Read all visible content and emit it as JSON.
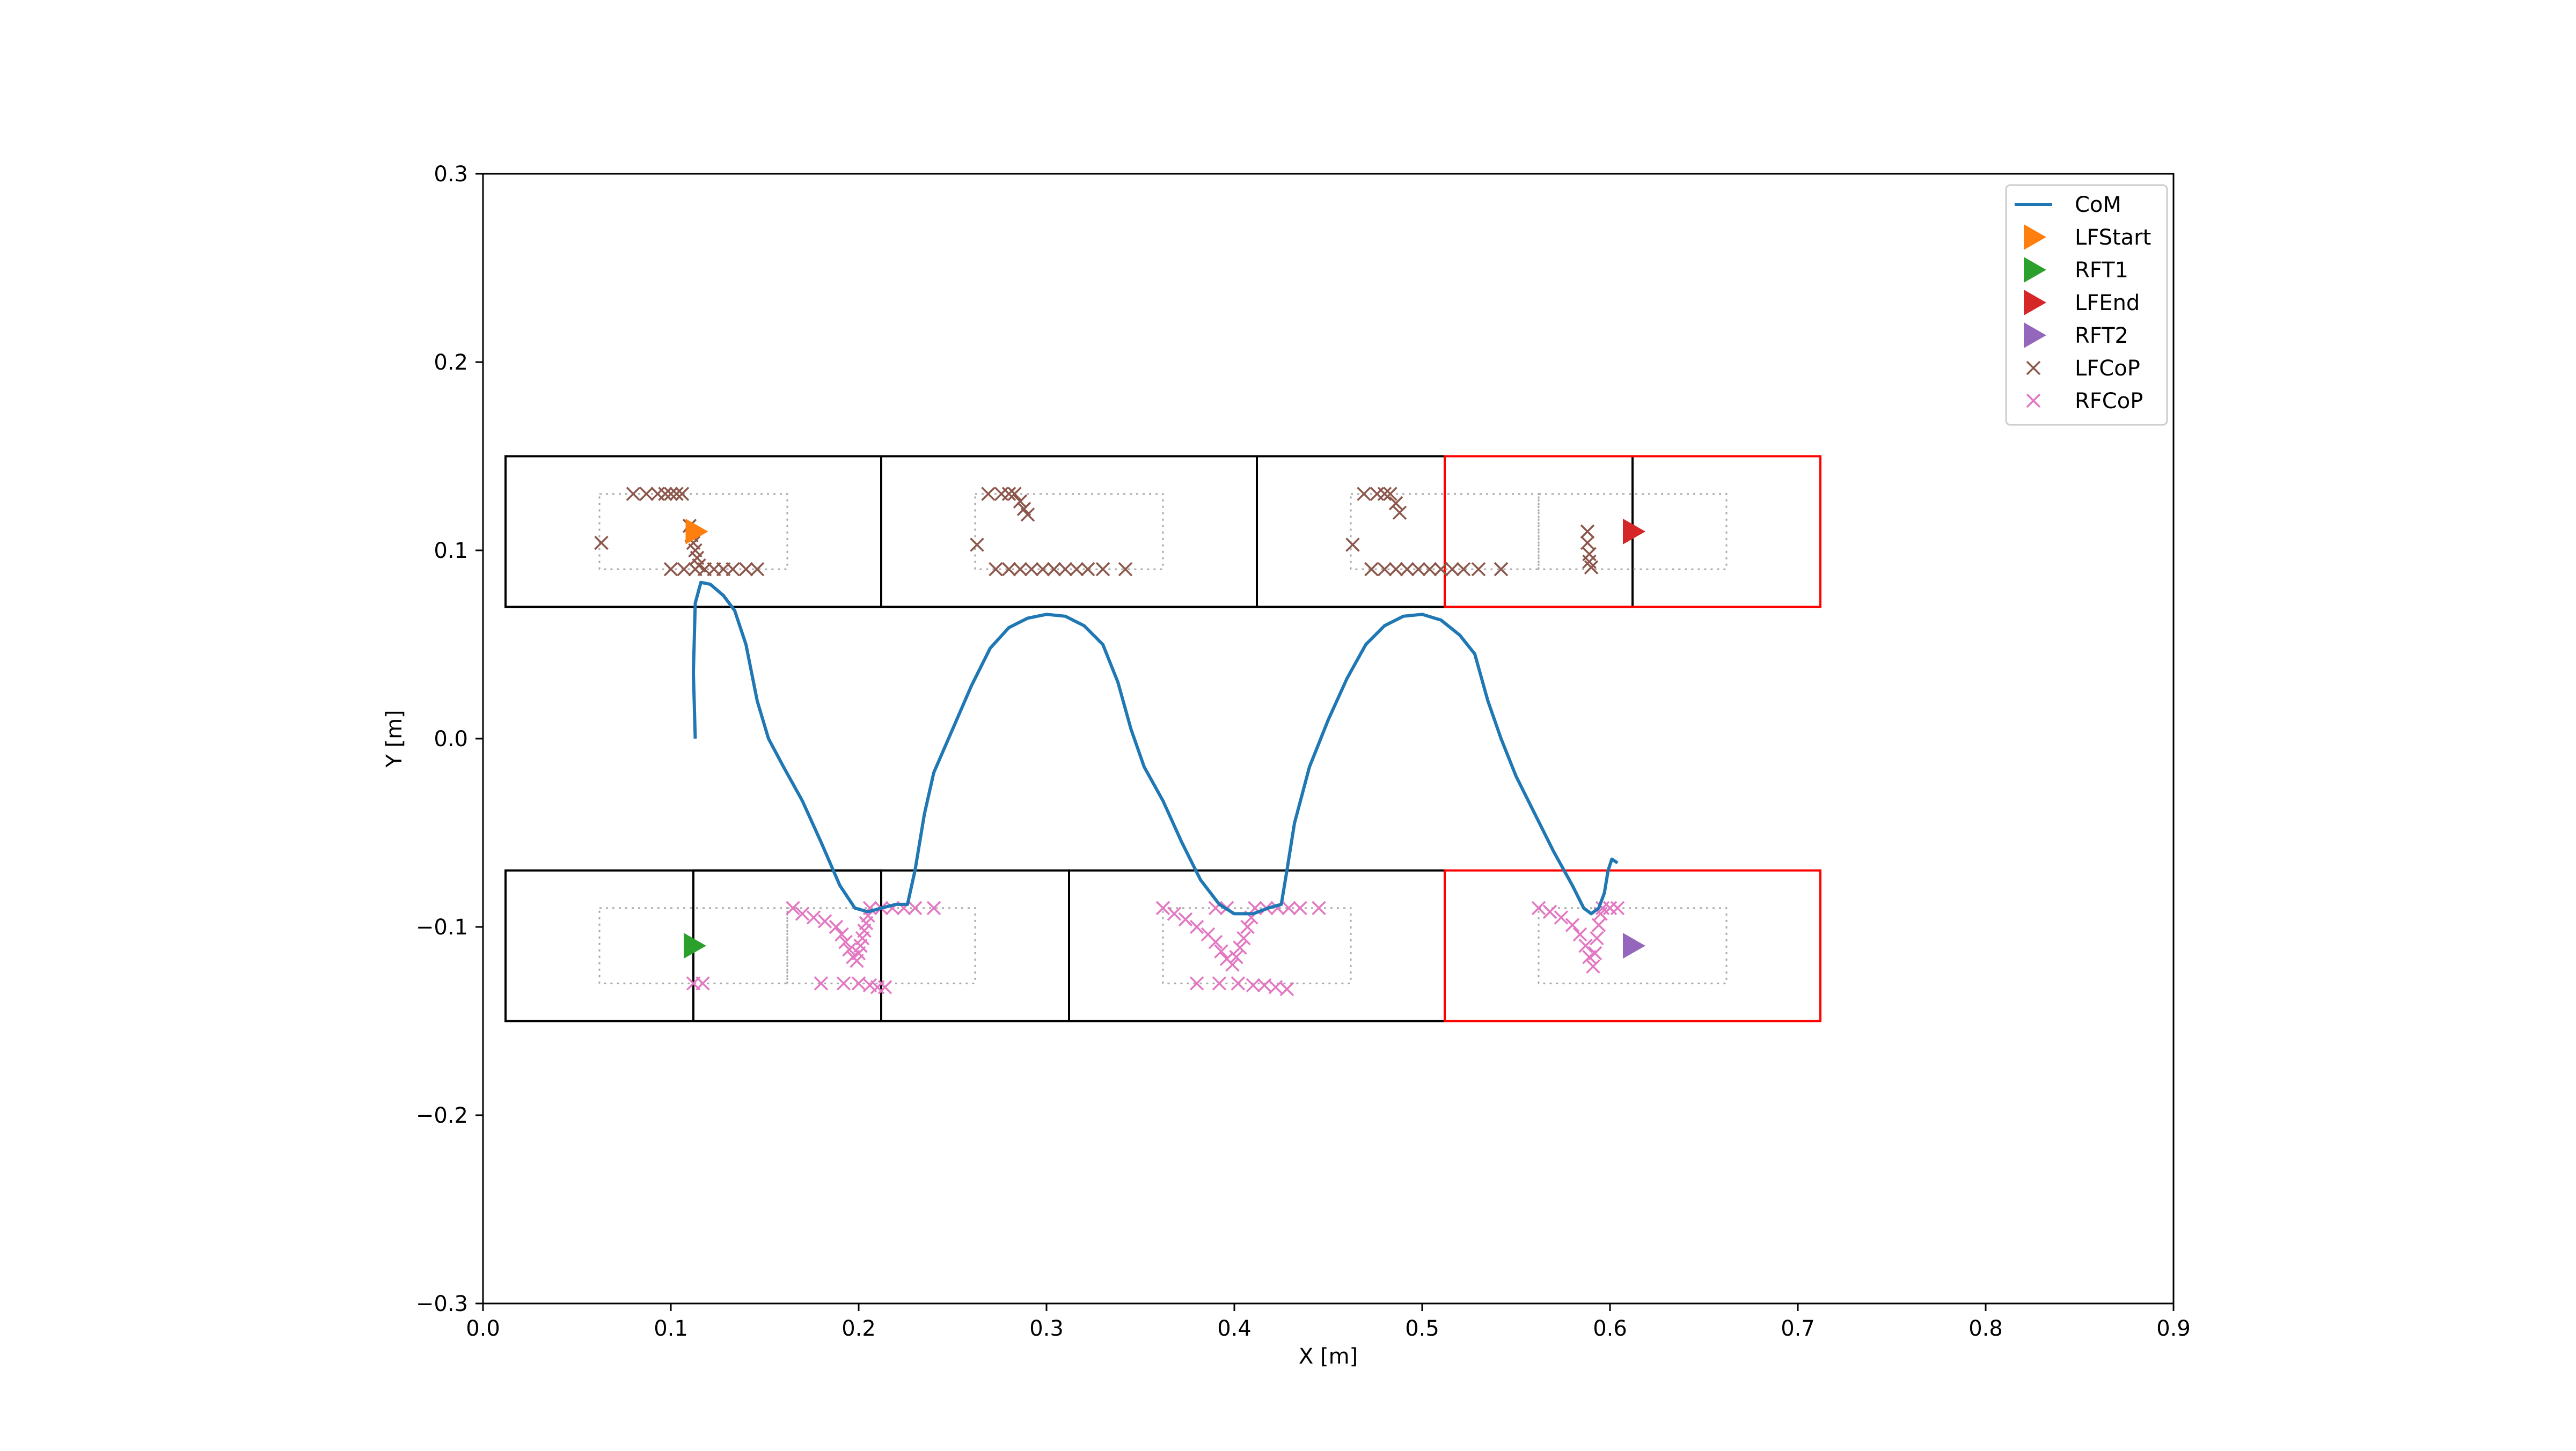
{
  "chart_data": {
    "type": "scatter",
    "title": "",
    "xlabel": "X [m]",
    "ylabel": "Y [m]",
    "xlim": [
      0.0,
      0.9
    ],
    "ylim": [
      -0.3,
      0.3
    ],
    "xticks": [
      "0.0",
      "0.1",
      "0.2",
      "0.3",
      "0.4",
      "0.5",
      "0.6",
      "0.7",
      "0.8",
      "0.9"
    ],
    "yticks": [
      "−0.3",
      "−0.2",
      "−0.1",
      "0.0",
      "0.1",
      "0.2",
      "0.3"
    ],
    "grid": false,
    "legend_position": "top-right",
    "colors": {
      "CoM": "#1f77b4",
      "LFStart": "#ff7f0e",
      "RFT1": "#2ca02c",
      "LFEnd": "#d62728",
      "RFT2": "#9467bd",
      "LFCoP": "#8c564b",
      "RFCoP": "#e377c2",
      "support_box": "#000000",
      "final_box": "#ff0000",
      "foot_outline": "#aaaaaa"
    },
    "series": [
      {
        "name": "CoM",
        "kind": "line",
        "points": [
          [
            0.113,
            0.0
          ],
          [
            0.112,
            0.035
          ],
          [
            0.113,
            0.072
          ],
          [
            0.116,
            0.083
          ],
          [
            0.121,
            0.082
          ],
          [
            0.128,
            0.076
          ],
          [
            0.134,
            0.068
          ],
          [
            0.14,
            0.05
          ],
          [
            0.146,
            0.02
          ],
          [
            0.152,
            -0.0
          ],
          [
            0.16,
            -0.015
          ],
          [
            0.17,
            -0.033
          ],
          [
            0.18,
            -0.055
          ],
          [
            0.19,
            -0.078
          ],
          [
            0.198,
            -0.09
          ],
          [
            0.205,
            -0.092
          ],
          [
            0.212,
            -0.09
          ],
          [
            0.22,
            -0.088
          ],
          [
            0.226,
            -0.088
          ],
          [
            0.23,
            -0.07
          ],
          [
            0.235,
            -0.04
          ],
          [
            0.24,
            -0.018
          ],
          [
            0.25,
            0.005
          ],
          [
            0.26,
            0.028
          ],
          [
            0.27,
            0.048
          ],
          [
            0.28,
            0.059
          ],
          [
            0.29,
            0.064
          ],
          [
            0.3,
            0.066
          ],
          [
            0.31,
            0.065
          ],
          [
            0.32,
            0.06
          ],
          [
            0.33,
            0.05
          ],
          [
            0.338,
            0.03
          ],
          [
            0.345,
            0.005
          ],
          [
            0.352,
            -0.015
          ],
          [
            0.362,
            -0.033
          ],
          [
            0.372,
            -0.055
          ],
          [
            0.382,
            -0.075
          ],
          [
            0.392,
            -0.088
          ],
          [
            0.4,
            -0.093
          ],
          [
            0.41,
            -0.093
          ],
          [
            0.418,
            -0.09
          ],
          [
            0.425,
            -0.088
          ],
          [
            0.428,
            -0.07
          ],
          [
            0.432,
            -0.045
          ],
          [
            0.44,
            -0.015
          ],
          [
            0.45,
            0.01
          ],
          [
            0.46,
            0.032
          ],
          [
            0.47,
            0.05
          ],
          [
            0.48,
            0.06
          ],
          [
            0.49,
            0.065
          ],
          [
            0.5,
            0.066
          ],
          [
            0.51,
            0.063
          ],
          [
            0.52,
            0.055
          ],
          [
            0.528,
            0.045
          ],
          [
            0.535,
            0.02
          ],
          [
            0.542,
            -0.0
          ],
          [
            0.55,
            -0.02
          ],
          [
            0.56,
            -0.04
          ],
          [
            0.57,
            -0.06
          ],
          [
            0.58,
            -0.078
          ],
          [
            0.586,
            -0.09
          ],
          [
            0.59,
            -0.093
          ],
          [
            0.594,
            -0.09
          ],
          [
            0.597,
            -0.082
          ],
          [
            0.599,
            -0.07
          ],
          [
            0.601,
            -0.064
          ],
          [
            0.604,
            -0.066
          ]
        ]
      },
      {
        "name": "LFStart",
        "kind": "marker",
        "marker": "triangle-right",
        "points": [
          [
            0.113,
            0.11
          ]
        ]
      },
      {
        "name": "RFT1",
        "kind": "marker",
        "marker": "triangle-right",
        "points": [
          [
            0.112,
            -0.11
          ]
        ]
      },
      {
        "name": "LFEnd",
        "kind": "marker",
        "marker": "triangle-right",
        "points": [
          [
            0.612,
            0.11
          ]
        ]
      },
      {
        "name": "RFT2",
        "kind": "marker",
        "marker": "triangle-right",
        "points": [
          [
            0.612,
            -0.11
          ]
        ]
      },
      {
        "name": "LFCoP",
        "kind": "scatter",
        "marker": "x",
        "points": [
          [
            0.063,
            0.104
          ],
          [
            0.08,
            0.13
          ],
          [
            0.087,
            0.13
          ],
          [
            0.093,
            0.13
          ],
          [
            0.097,
            0.13
          ],
          [
            0.1,
            0.13
          ],
          [
            0.103,
            0.13
          ],
          [
            0.106,
            0.13
          ],
          [
            0.1,
            0.09
          ],
          [
            0.107,
            0.09
          ],
          [
            0.11,
            0.113
          ],
          [
            0.111,
            0.108
          ],
          [
            0.112,
            0.104
          ],
          [
            0.113,
            0.1
          ],
          [
            0.114,
            0.096
          ],
          [
            0.115,
            0.092
          ],
          [
            0.113,
            0.09
          ],
          [
            0.118,
            0.09
          ],
          [
            0.123,
            0.09
          ],
          [
            0.128,
            0.09
          ],
          [
            0.133,
            0.09
          ],
          [
            0.14,
            0.09
          ],
          [
            0.146,
            0.09
          ],
          [
            0.263,
            0.103
          ],
          [
            0.269,
            0.13
          ],
          [
            0.276,
            0.13
          ],
          [
            0.28,
            0.13
          ],
          [
            0.283,
            0.13
          ],
          [
            0.286,
            0.126
          ],
          [
            0.288,
            0.122
          ],
          [
            0.29,
            0.119
          ],
          [
            0.273,
            0.09
          ],
          [
            0.28,
            0.09
          ],
          [
            0.286,
            0.09
          ],
          [
            0.292,
            0.09
          ],
          [
            0.298,
            0.09
          ],
          [
            0.304,
            0.09
          ],
          [
            0.31,
            0.09
          ],
          [
            0.316,
            0.09
          ],
          [
            0.322,
            0.09
          ],
          [
            0.33,
            0.09
          ],
          [
            0.342,
            0.09
          ],
          [
            0.463,
            0.103
          ],
          [
            0.469,
            0.13
          ],
          [
            0.476,
            0.13
          ],
          [
            0.48,
            0.13
          ],
          [
            0.483,
            0.13
          ],
          [
            0.486,
            0.125
          ],
          [
            0.488,
            0.12
          ],
          [
            0.473,
            0.09
          ],
          [
            0.48,
            0.09
          ],
          [
            0.486,
            0.09
          ],
          [
            0.492,
            0.09
          ],
          [
            0.498,
            0.09
          ],
          [
            0.504,
            0.09
          ],
          [
            0.51,
            0.09
          ],
          [
            0.516,
            0.09
          ],
          [
            0.522,
            0.09
          ],
          [
            0.53,
            0.09
          ],
          [
            0.542,
            0.09
          ],
          [
            0.588,
            0.11
          ],
          [
            0.588,
            0.104
          ],
          [
            0.589,
            0.098
          ],
          [
            0.589,
            0.094
          ],
          [
            0.59,
            0.091
          ]
        ]
      },
      {
        "name": "RFCoP",
        "kind": "scatter",
        "marker": "x",
        "points": [
          [
            0.112,
            -0.13
          ],
          [
            0.117,
            -0.13
          ],
          [
            0.165,
            -0.09
          ],
          [
            0.17,
            -0.093
          ],
          [
            0.176,
            -0.095
          ],
          [
            0.182,
            -0.097
          ],
          [
            0.188,
            -0.1
          ],
          [
            0.191,
            -0.104
          ],
          [
            0.193,
            -0.108
          ],
          [
            0.195,
            -0.112
          ],
          [
            0.197,
            -0.116
          ],
          [
            0.199,
            -0.118
          ],
          [
            0.2,
            -0.114
          ],
          [
            0.201,
            -0.11
          ],
          [
            0.202,
            -0.106
          ],
          [
            0.203,
            -0.102
          ],
          [
            0.204,
            -0.098
          ],
          [
            0.205,
            -0.094
          ],
          [
            0.206,
            -0.09
          ],
          [
            0.212,
            -0.09
          ],
          [
            0.218,
            -0.09
          ],
          [
            0.224,
            -0.09
          ],
          [
            0.23,
            -0.09
          ],
          [
            0.24,
            -0.09
          ],
          [
            0.18,
            -0.13
          ],
          [
            0.192,
            -0.13
          ],
          [
            0.2,
            -0.13
          ],
          [
            0.206,
            -0.131
          ],
          [
            0.21,
            -0.132
          ],
          [
            0.214,
            -0.132
          ],
          [
            0.362,
            -0.09
          ],
          [
            0.368,
            -0.093
          ],
          [
            0.374,
            -0.096
          ],
          [
            0.38,
            -0.1
          ],
          [
            0.386,
            -0.104
          ],
          [
            0.39,
            -0.108
          ],
          [
            0.393,
            -0.113
          ],
          [
            0.396,
            -0.117
          ],
          [
            0.399,
            -0.12
          ],
          [
            0.401,
            -0.116
          ],
          [
            0.403,
            -0.111
          ],
          [
            0.405,
            -0.106
          ],
          [
            0.407,
            -0.1
          ],
          [
            0.409,
            -0.095
          ],
          [
            0.411,
            -0.09
          ],
          [
            0.417,
            -0.09
          ],
          [
            0.423,
            -0.09
          ],
          [
            0.429,
            -0.09
          ],
          [
            0.435,
            -0.09
          ],
          [
            0.445,
            -0.09
          ],
          [
            0.39,
            -0.09
          ],
          [
            0.396,
            -0.09
          ],
          [
            0.38,
            -0.13
          ],
          [
            0.392,
            -0.13
          ],
          [
            0.402,
            -0.13
          ],
          [
            0.41,
            -0.131
          ],
          [
            0.416,
            -0.131
          ],
          [
            0.422,
            -0.132
          ],
          [
            0.428,
            -0.133
          ],
          [
            0.562,
            -0.09
          ],
          [
            0.568,
            -0.092
          ],
          [
            0.574,
            -0.095
          ],
          [
            0.58,
            -0.099
          ],
          [
            0.584,
            -0.104
          ],
          [
            0.587,
            -0.11
          ],
          [
            0.589,
            -0.116
          ],
          [
            0.591,
            -0.121
          ],
          [
            0.592,
            -0.114
          ],
          [
            0.593,
            -0.106
          ],
          [
            0.594,
            -0.099
          ],
          [
            0.595,
            -0.093
          ],
          [
            0.596,
            -0.09
          ],
          [
            0.6,
            -0.09
          ],
          [
            0.604,
            -0.09
          ]
        ]
      }
    ],
    "support_regions": [
      {
        "color": "black",
        "x": [
          0.012,
          0.212
        ],
        "y": [
          0.07,
          0.15
        ]
      },
      {
        "color": "black",
        "x": [
          0.212,
          0.412
        ],
        "y": [
          0.07,
          0.15
        ]
      },
      {
        "color": "black",
        "x": [
          0.412,
          0.612
        ],
        "y": [
          0.07,
          0.15
        ]
      },
      {
        "color": "red",
        "x": [
          0.512,
          0.712
        ],
        "y": [
          0.07,
          0.15
        ]
      },
      {
        "color": "black",
        "x": [
          0.012,
          0.212
        ],
        "y": [
          -0.15,
          -0.07
        ]
      },
      {
        "color": "black",
        "x": [
          0.112,
          0.312
        ],
        "y": [
          -0.15,
          -0.07
        ]
      },
      {
        "color": "black",
        "x": [
          0.312,
          0.512
        ],
        "y": [
          -0.15,
          -0.07
        ]
      },
      {
        "color": "red",
        "x": [
          0.512,
          0.712
        ],
        "y": [
          -0.15,
          -0.07
        ]
      }
    ],
    "foot_outlines": [
      {
        "x": [
          0.062,
          0.162
        ],
        "y": [
          0.09,
          0.13
        ]
      },
      {
        "x": [
          0.262,
          0.362
        ],
        "y": [
          0.09,
          0.13
        ]
      },
      {
        "x": [
          0.462,
          0.562
        ],
        "y": [
          0.09,
          0.13
        ]
      },
      {
        "x": [
          0.562,
          0.662
        ],
        "y": [
          0.09,
          0.13
        ]
      },
      {
        "x": [
          0.062,
          0.162
        ],
        "y": [
          -0.13,
          -0.09
        ]
      },
      {
        "x": [
          0.162,
          0.262
        ],
        "y": [
          -0.13,
          -0.09
        ]
      },
      {
        "x": [
          0.362,
          0.462
        ],
        "y": [
          -0.13,
          -0.09
        ]
      },
      {
        "x": [
          0.562,
          0.662
        ],
        "y": [
          -0.13,
          -0.09
        ]
      }
    ],
    "legend": [
      "CoM",
      "LFStart",
      "RFT1",
      "LFEnd",
      "RFT2",
      "LFCoP",
      "RFCoP"
    ]
  }
}
